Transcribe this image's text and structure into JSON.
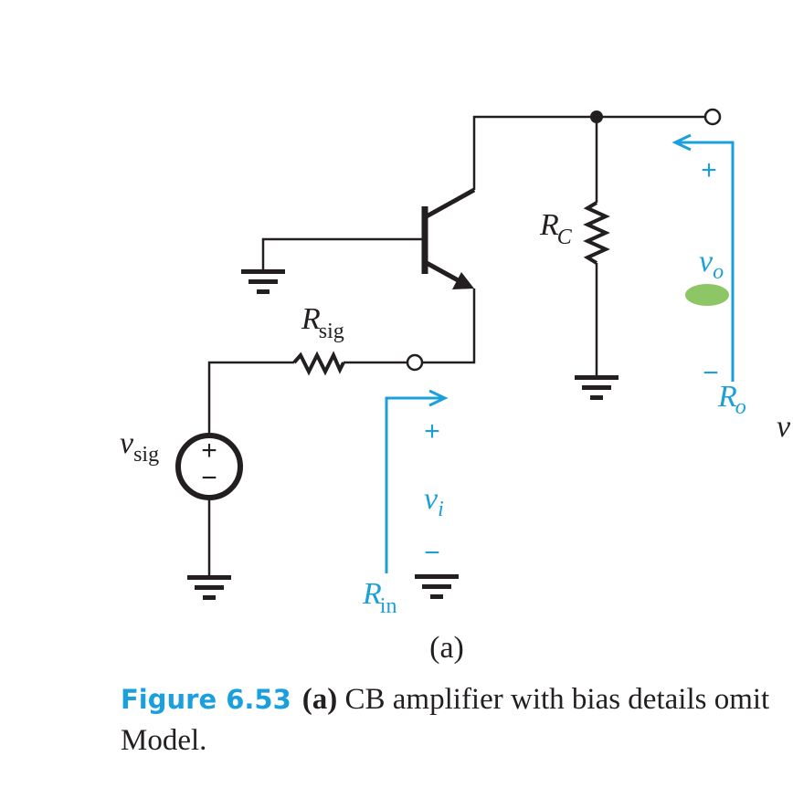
{
  "colors": {
    "wire": "#231f20",
    "annotation": "#1ba0db",
    "highlight": "#8cc665"
  },
  "labels": {
    "r_sig": {
      "main": "R",
      "sub": "sig"
    },
    "r_c": {
      "main": "R",
      "sub": "C"
    },
    "v_sig": {
      "main": "v",
      "sub": "sig"
    },
    "v_i": {
      "main": "v",
      "sub": "i"
    },
    "v_o": {
      "main": "v",
      "sub": "o"
    },
    "r_in": {
      "main": "R",
      "sub": "in"
    },
    "r_o": {
      "main": "R",
      "sub": "o"
    },
    "v_cut": "v",
    "plus": "+",
    "minus": "−",
    "panel": "(a)"
  },
  "caption": {
    "figure_number": "Figure 6.53",
    "part": "(a)",
    "line1": "CB amplifier with bias details omit",
    "line2": "Model."
  }
}
